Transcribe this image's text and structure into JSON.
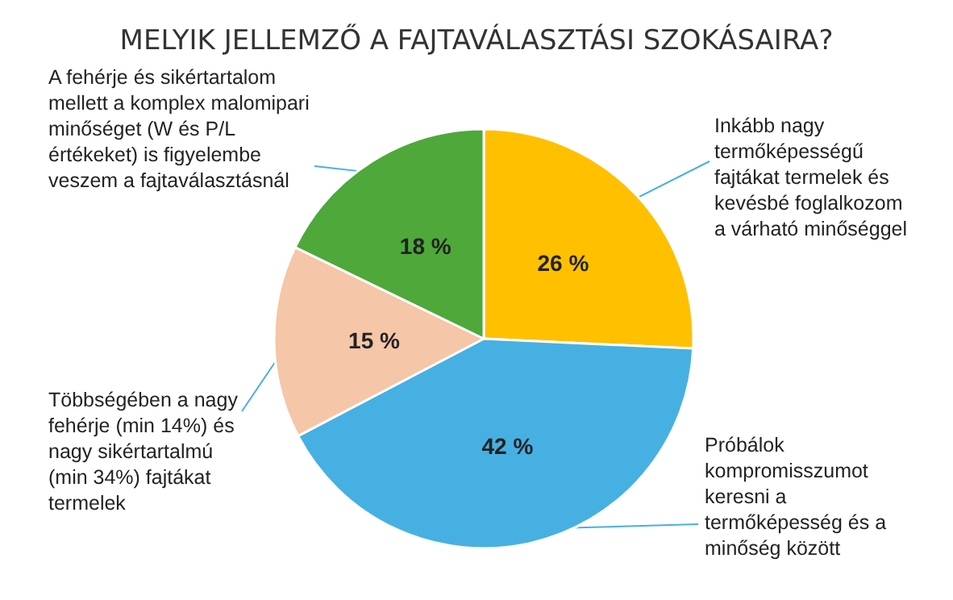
{
  "chart_data": {
    "type": "pie",
    "title": "MELYIK JELLEMZŐ A FAJTAVÁLASZTÁSI SZOKÁSAIRA?",
    "categories": [
      "Inkább nagy\ntermőképességű\nfajtákat termelek és\nkevésbé foglalkozom\na várható minőséggel",
      "Próbálok\nkompromisszumot\nkeresni a\ntermőképesség és a\nminőség között",
      "Többségében a nagy\nfehérje (min 14%) és\nnagy sikértartalmú\n(min 34%) fajtákat\ntermelek",
      "A fehérje és sikértartalom\nmellett a komplex malomipari\nminőséget (W és P/L\nértékeket) is figyelembe\nveszem a fajtaválasztásnál"
    ],
    "values": [
      26,
      42,
      15,
      18
    ],
    "value_labels": [
      "26 %",
      "42 %",
      "15 %",
      "18 %"
    ],
    "colors": [
      "#ffc000",
      "#47b0e2",
      "#f5c6a8",
      "#4ea83a"
    ]
  }
}
